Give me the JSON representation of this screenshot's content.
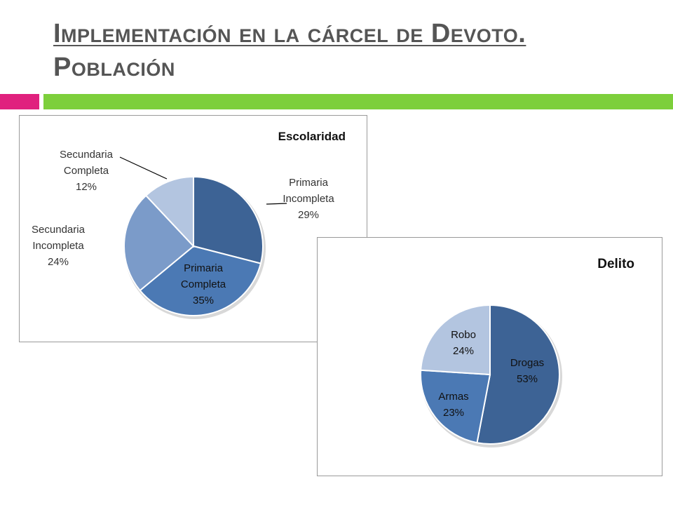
{
  "slide": {
    "title_line1": "Implementación en la cárcel de Devoto.",
    "title_line2": "Población"
  },
  "colors": {
    "pink_accent": "#e0217e",
    "green_accent": "#7dcf3b",
    "title_text": "#555555"
  },
  "chart_data": [
    {
      "type": "pie",
      "title": "Escolaridad",
      "legend": "none (labels on slices)",
      "slices": [
        {
          "label": [
            "Primaria",
            "Incompleta"
          ],
          "percent_label": "29%",
          "value": 29,
          "color": "#3d6395"
        },
        {
          "label": [
            "Primaria",
            "Completa"
          ],
          "percent_label": "35%",
          "value": 35,
          "color": "#4b79b4"
        },
        {
          "label": [
            "Secundaria",
            "Incompleta"
          ],
          "percent_label": "24%",
          "value": 24,
          "color": "#7b9bc9"
        },
        {
          "label": [
            "Secundaria",
            "Completa"
          ],
          "percent_label": "12%",
          "value": 12,
          "color": "#b3c5e0"
        }
      ]
    },
    {
      "type": "pie",
      "title": "Delito",
      "legend": "none (labels on slices)",
      "slices": [
        {
          "label": [
            "Drogas"
          ],
          "percent_label": "53%",
          "value": 53,
          "color": "#3d6395"
        },
        {
          "label": [
            "Armas"
          ],
          "percent_label": "23%",
          "value": 23,
          "color": "#4b79b4"
        },
        {
          "label": [
            "Robo"
          ],
          "percent_label": "24%",
          "value": 24,
          "color": "#b3c5e0"
        }
      ]
    }
  ]
}
